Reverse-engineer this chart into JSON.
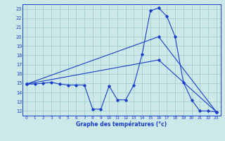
{
  "title": "Graphe des températures (°c)",
  "bg_color": "#cce8e8",
  "grid_color": "#99cccc",
  "line_color": "#1a3ec8",
  "xlim": [
    -0.5,
    23.5
  ],
  "ylim": [
    11.5,
    23.5
  ],
  "xticks": [
    0,
    1,
    2,
    3,
    4,
    5,
    6,
    7,
    8,
    9,
    10,
    11,
    12,
    13,
    14,
    15,
    16,
    17,
    18,
    19,
    20,
    21,
    22,
    23
  ],
  "yticks": [
    12,
    13,
    14,
    15,
    16,
    17,
    18,
    19,
    20,
    21,
    22,
    23
  ],
  "series": [
    {
      "x": [
        0,
        1,
        2,
        3,
        4,
        5,
        6,
        7,
        8,
        9,
        10,
        11,
        12,
        13,
        14,
        15,
        16,
        17,
        18,
        19,
        20,
        21,
        22,
        23
      ],
      "y": [
        14.9,
        14.9,
        15.0,
        15.1,
        14.9,
        14.8,
        14.8,
        14.8,
        12.2,
        12.2,
        14.7,
        13.2,
        13.2,
        14.8,
        18.1,
        22.8,
        23.1,
        22.2,
        20.0,
        15.1,
        13.2,
        12.0,
        12.0,
        11.9
      ]
    },
    {
      "x": [
        0,
        16,
        23
      ],
      "y": [
        14.9,
        20.0,
        11.9
      ]
    },
    {
      "x": [
        0,
        16,
        23
      ],
      "y": [
        14.9,
        17.5,
        11.9
      ]
    }
  ]
}
